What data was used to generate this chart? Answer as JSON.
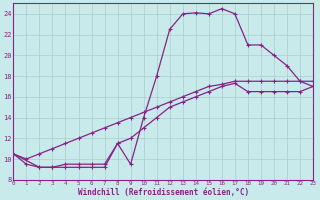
{
  "bg_color": "#c8eaea",
  "line_color": "#882288",
  "grid_color": "#aacccc",
  "xlabel": "Windchill (Refroidissement éolien,°C)",
  "xlim": [
    0,
    23
  ],
  "ylim": [
    8,
    25
  ],
  "xticks": [
    0,
    1,
    2,
    3,
    4,
    5,
    6,
    7,
    8,
    9,
    10,
    11,
    12,
    13,
    14,
    15,
    16,
    17,
    18,
    19,
    20,
    21,
    22,
    23
  ],
  "yticks": [
    8,
    10,
    12,
    14,
    16,
    18,
    20,
    22,
    24
  ],
  "curve1_x": [
    0,
    1,
    2,
    3,
    4,
    5,
    6,
    7,
    8,
    9,
    10,
    11,
    12,
    13,
    14,
    15,
    16,
    17,
    18,
    19,
    20,
    21,
    22,
    23
  ],
  "curve1_y": [
    10.5,
    9.5,
    9.2,
    9.2,
    9.2,
    9.2,
    9.2,
    9.2,
    11.5,
    9.5,
    14.0,
    18.0,
    22.5,
    24.0,
    24.1,
    24.0,
    24.5,
    24.0,
    21.0,
    21.0,
    20.0,
    19.0,
    17.5,
    17.0
  ],
  "curve2_x": [
    0,
    1,
    2,
    3,
    4,
    5,
    6,
    7,
    8,
    9,
    10,
    11,
    12,
    13,
    14,
    15,
    16,
    17,
    18,
    19,
    20,
    21,
    22,
    23
  ],
  "curve2_y": [
    10.5,
    10.0,
    10.5,
    11.0,
    11.5,
    12.0,
    12.5,
    13.0,
    13.5,
    14.0,
    14.5,
    15.0,
    15.5,
    16.0,
    16.5,
    17.0,
    17.2,
    17.5,
    17.5,
    17.5,
    17.5,
    17.5,
    17.5,
    17.5
  ],
  "curve3_x": [
    0,
    2,
    3,
    4,
    5,
    6,
    7,
    8,
    9,
    10,
    11,
    12,
    13,
    14,
    15,
    16,
    17,
    18,
    19,
    20,
    21,
    22,
    23
  ],
  "curve3_y": [
    10.5,
    9.2,
    9.2,
    9.5,
    9.5,
    9.5,
    9.5,
    11.5,
    12.0,
    13.0,
    14.0,
    15.0,
    15.5,
    16.0,
    16.5,
    17.0,
    17.3,
    16.5,
    16.5,
    16.5,
    16.5,
    16.5,
    17.0
  ]
}
